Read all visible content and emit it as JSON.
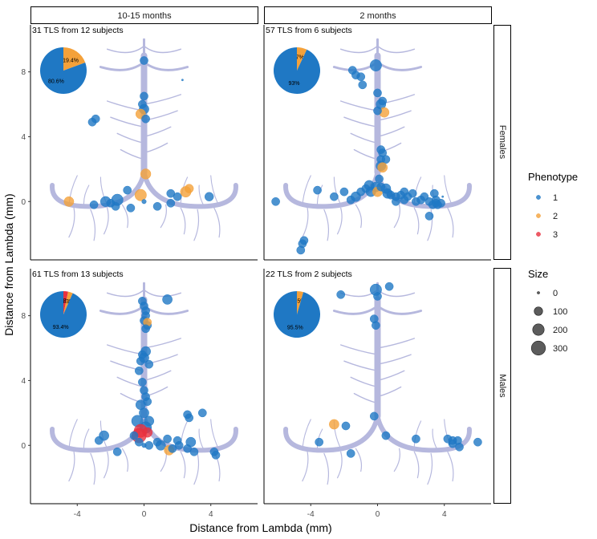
{
  "chart_data": {
    "type": "scatter",
    "xlabel": "Distance from Lambda (mm)",
    "ylabel": "Distance from Lambda (mm)",
    "xlim": [
      -6.8,
      6.8
    ],
    "ylim": [
      -3.6,
      10.9
    ],
    "x_ticks": [
      "-4",
      "0",
      "4"
    ],
    "y_ticks": [
      "0",
      "4",
      "8"
    ],
    "columns": [
      "10-15 months",
      "2 months"
    ],
    "rows": [
      "Females",
      "Males"
    ],
    "legend": {
      "phenotype_title": "Phenotype",
      "phenotype_items": [
        {
          "label": "1",
          "color": "#1f78c4"
        },
        {
          "label": "2",
          "color": "#f4a13a"
        },
        {
          "label": "3",
          "color": "#e8313f"
        }
      ],
      "size_title": "Size",
      "size_items": [
        "0",
        "100",
        "200",
        "300"
      ]
    },
    "panels": [
      {
        "col": 0,
        "row": 0,
        "label": "31 TLS from 12 subjects",
        "pie": [
          {
            "phenotype": "1",
            "pct": 80.6,
            "label": "80.6%"
          },
          {
            "phenotype": "2",
            "pct": 19.4,
            "label": "19.4%"
          }
        ],
        "points": [
          {
            "x": 0.0,
            "y": 8.7,
            "p": 1,
            "s": 25
          },
          {
            "x": 0.0,
            "y": 6.5,
            "p": 1,
            "s": 25
          },
          {
            "x": -0.1,
            "y": 6.0,
            "p": 1,
            "s": 25
          },
          {
            "x": 0.0,
            "y": 5.7,
            "p": 1,
            "s": 40
          },
          {
            "x": -0.2,
            "y": 5.4,
            "p": 2,
            "s": 40
          },
          {
            "x": 0.1,
            "y": 5.1,
            "p": 1,
            "s": 25
          },
          {
            "x": -2.9,
            "y": 5.1,
            "p": 1,
            "s": 25
          },
          {
            "x": -3.1,
            "y": 4.9,
            "p": 1,
            "s": 25
          },
          {
            "x": 0.1,
            "y": 1.7,
            "p": 2,
            "s": 45
          },
          {
            "x": -0.2,
            "y": 0.4,
            "p": 2,
            "s": 60
          },
          {
            "x": -4.5,
            "y": 0.0,
            "p": 2,
            "s": 40
          },
          {
            "x": -3.0,
            "y": -0.2,
            "p": 1,
            "s": 25
          },
          {
            "x": -2.3,
            "y": 0.0,
            "p": 1,
            "s": 45
          },
          {
            "x": -2.0,
            "y": -0.1,
            "p": 1,
            "s": 25
          },
          {
            "x": -1.6,
            "y": 0.1,
            "p": 1,
            "s": 60
          },
          {
            "x": -1.7,
            "y": -0.3,
            "p": 1,
            "s": 25
          },
          {
            "x": -1.0,
            "y": 0.7,
            "p": 1,
            "s": 25
          },
          {
            "x": -0.8,
            "y": -0.4,
            "p": 1,
            "s": 25
          },
          {
            "x": 0.0,
            "y": 0.0,
            "p": 1,
            "s": 4
          },
          {
            "x": 0.8,
            "y": -0.3,
            "p": 1,
            "s": 25
          },
          {
            "x": 1.6,
            "y": 0.5,
            "p": 1,
            "s": 25
          },
          {
            "x": 1.6,
            "y": -0.1,
            "p": 1,
            "s": 25
          },
          {
            "x": 2.0,
            "y": 0.3,
            "p": 1,
            "s": 25
          },
          {
            "x": 2.5,
            "y": 0.6,
            "p": 2,
            "s": 50
          },
          {
            "x": 2.7,
            "y": 0.8,
            "p": 2,
            "s": 30
          },
          {
            "x": 3.9,
            "y": 0.3,
            "p": 1,
            "s": 30
          },
          {
            "x": 2.3,
            "y": 7.5,
            "p": 1,
            "s": 0
          }
        ]
      },
      {
        "col": 1,
        "row": 0,
        "label": "57 TLS from 6 subjects",
        "pie": [
          {
            "phenotype": "1",
            "pct": 93,
            "label": "93%"
          },
          {
            "phenotype": "2",
            "pct": 7,
            "label": "7%"
          }
        ],
        "points": [
          {
            "x": -0.1,
            "y": 8.4,
            "p": 1,
            "s": 60
          },
          {
            "x": -1.5,
            "y": 8.1,
            "p": 1,
            "s": 25
          },
          {
            "x": -1.3,
            "y": 7.8,
            "p": 1,
            "s": 25
          },
          {
            "x": -1.0,
            "y": 7.7,
            "p": 1,
            "s": 25
          },
          {
            "x": -0.9,
            "y": 7.2,
            "p": 1,
            "s": 25
          },
          {
            "x": 0.0,
            "y": 6.7,
            "p": 1,
            "s": 25
          },
          {
            "x": 0.3,
            "y": 6.2,
            "p": 1,
            "s": 25
          },
          {
            "x": 0.2,
            "y": 6.0,
            "p": 1,
            "s": 40
          },
          {
            "x": 0.4,
            "y": 5.5,
            "p": 2,
            "s": 40
          },
          {
            "x": 0.0,
            "y": 5.6,
            "p": 1,
            "s": 25
          },
          {
            "x": 0.2,
            "y": 3.2,
            "p": 1,
            "s": 25
          },
          {
            "x": 0.3,
            "y": 3.0,
            "p": 1,
            "s": 25
          },
          {
            "x": 0.2,
            "y": 2.6,
            "p": 1,
            "s": 25
          },
          {
            "x": 0.2,
            "y": 2.2,
            "p": 1,
            "s": 40
          },
          {
            "x": 0.5,
            "y": 2.6,
            "p": 1,
            "s": 25
          },
          {
            "x": 0.3,
            "y": 2.1,
            "p": 2,
            "s": 40
          },
          {
            "x": 0.1,
            "y": 1.4,
            "p": 1,
            "s": 25
          },
          {
            "x": -6.1,
            "y": 0.0,
            "p": 1,
            "s": 25
          },
          {
            "x": -3.6,
            "y": 0.7,
            "p": 1,
            "s": 25
          },
          {
            "x": -2.6,
            "y": 0.3,
            "p": 1,
            "s": 25
          },
          {
            "x": -2.0,
            "y": 0.6,
            "p": 1,
            "s": 25
          },
          {
            "x": -1.6,
            "y": 0.1,
            "p": 1,
            "s": 25
          },
          {
            "x": -1.3,
            "y": 0.3,
            "p": 1,
            "s": 40
          },
          {
            "x": -1.0,
            "y": 0.6,
            "p": 1,
            "s": 25
          },
          {
            "x": -0.7,
            "y": 0.8,
            "p": 1,
            "s": 25
          },
          {
            "x": -0.5,
            "y": 1.0,
            "p": 1,
            "s": 40
          },
          {
            "x": -0.4,
            "y": 0.6,
            "p": 1,
            "s": 40
          },
          {
            "x": -0.1,
            "y": 0.9,
            "p": 1,
            "s": 40
          },
          {
            "x": 0.0,
            "y": 0.6,
            "p": 2,
            "s": 40
          },
          {
            "x": 0.2,
            "y": 0.9,
            "p": 1,
            "s": 25
          },
          {
            "x": 0.5,
            "y": 0.8,
            "p": 1,
            "s": 40
          },
          {
            "x": 0.6,
            "y": 0.5,
            "p": 1,
            "s": 40
          },
          {
            "x": 0.8,
            "y": 0.4,
            "p": 1,
            "s": 25
          },
          {
            "x": 1.1,
            "y": 0.3,
            "p": 1,
            "s": 25
          },
          {
            "x": 1.1,
            "y": 0.0,
            "p": 1,
            "s": 25
          },
          {
            "x": 1.4,
            "y": 0.4,
            "p": 1,
            "s": 25
          },
          {
            "x": 1.6,
            "y": 0.6,
            "p": 1,
            "s": 25
          },
          {
            "x": 1.6,
            "y": 0.1,
            "p": 1,
            "s": 25
          },
          {
            "x": 1.8,
            "y": 0.3,
            "p": 1,
            "s": 25
          },
          {
            "x": 2.1,
            "y": 0.5,
            "p": 1,
            "s": 25
          },
          {
            "x": 2.3,
            "y": 0.0,
            "p": 1,
            "s": 25
          },
          {
            "x": 2.6,
            "y": 0.1,
            "p": 1,
            "s": 25
          },
          {
            "x": 2.8,
            "y": 0.3,
            "p": 1,
            "s": 25
          },
          {
            "x": 3.1,
            "y": 0.0,
            "p": 1,
            "s": 25
          },
          {
            "x": 3.3,
            "y": -0.2,
            "p": 1,
            "s": 25
          },
          {
            "x": 3.5,
            "y": -0.1,
            "p": 1,
            "s": 25
          },
          {
            "x": 3.8,
            "y": -0.1,
            "p": 1,
            "s": 25
          },
          {
            "x": 3.4,
            "y": 0.5,
            "p": 1,
            "s": 25
          },
          {
            "x": 3.5,
            "y": 0.1,
            "p": 1,
            "s": 25
          },
          {
            "x": 3.1,
            "y": -0.9,
            "p": 1,
            "s": 25
          },
          {
            "x": -4.4,
            "y": -2.4,
            "p": 1,
            "s": 25
          },
          {
            "x": -4.5,
            "y": -2.6,
            "p": 1,
            "s": 25
          },
          {
            "x": -4.6,
            "y": -3.0,
            "p": 1,
            "s": 25
          },
          {
            "x": 3.6,
            "y": -0.2,
            "p": 1,
            "s": 25
          },
          {
            "x": 3.9,
            "y": 0.3,
            "p": 1,
            "s": 0
          }
        ]
      },
      {
        "col": 0,
        "row": 1,
        "label": "61 TLS from 13 subjects",
        "pie": [
          {
            "phenotype": "1",
            "pct": 93.4,
            "label": "93.4%"
          },
          {
            "phenotype": "2",
            "pct": 3.3,
            "label": "3.3%"
          },
          {
            "phenotype": "3",
            "pct": 3.3,
            "label": "3.3%"
          }
        ],
        "points": [
          {
            "x": -0.1,
            "y": 8.9,
            "p": 1,
            "s": 25
          },
          {
            "x": 1.4,
            "y": 9.0,
            "p": 1,
            "s": 40
          },
          {
            "x": 0.0,
            "y": 8.6,
            "p": 1,
            "s": 25
          },
          {
            "x": 0.1,
            "y": 8.3,
            "p": 1,
            "s": 25
          },
          {
            "x": 0.1,
            "y": 8.0,
            "p": 1,
            "s": 25
          },
          {
            "x": 0.0,
            "y": 7.7,
            "p": 1,
            "s": 25
          },
          {
            "x": 0.2,
            "y": 7.4,
            "p": 1,
            "s": 25
          },
          {
            "x": 0.2,
            "y": 7.6,
            "p": 2,
            "s": 25
          },
          {
            "x": 0.1,
            "y": 7.2,
            "p": 1,
            "s": 25
          },
          {
            "x": 0.1,
            "y": 5.8,
            "p": 1,
            "s": 40
          },
          {
            "x": -0.1,
            "y": 5.6,
            "p": 1,
            "s": 25
          },
          {
            "x": 0.0,
            "y": 5.4,
            "p": 1,
            "s": 40
          },
          {
            "x": -0.2,
            "y": 5.2,
            "p": 1,
            "s": 25
          },
          {
            "x": 0.3,
            "y": 5.0,
            "p": 1,
            "s": 25
          },
          {
            "x": -0.3,
            "y": 4.6,
            "p": 1,
            "s": 25
          },
          {
            "x": -0.1,
            "y": 3.9,
            "p": 1,
            "s": 25
          },
          {
            "x": 0.0,
            "y": 3.4,
            "p": 1,
            "s": 25
          },
          {
            "x": 0.1,
            "y": 3.0,
            "p": 1,
            "s": 25
          },
          {
            "x": 0.2,
            "y": 2.7,
            "p": 1,
            "s": 25
          },
          {
            "x": -0.2,
            "y": 2.5,
            "p": 1,
            "s": 40
          },
          {
            "x": 0.0,
            "y": 2.0,
            "p": 1,
            "s": 40
          },
          {
            "x": 0.3,
            "y": 1.5,
            "p": 1,
            "s": 40
          },
          {
            "x": -0.4,
            "y": 1.5,
            "p": 1,
            "s": 60
          },
          {
            "x": 0.1,
            "y": 1.1,
            "p": 1,
            "s": 60
          },
          {
            "x": -0.2,
            "y": 0.9,
            "p": 3,
            "s": 80
          },
          {
            "x": -0.3,
            "y": 0.6,
            "p": 3,
            "s": 100
          },
          {
            "x": 0.2,
            "y": 0.8,
            "p": 3,
            "s": 40
          },
          {
            "x": 2.6,
            "y": 1.9,
            "p": 1,
            "s": 25
          },
          {
            "x": 2.7,
            "y": 1.7,
            "p": 1,
            "s": 25
          },
          {
            "x": 3.5,
            "y": 2.0,
            "p": 1,
            "s": 25
          },
          {
            "x": -2.4,
            "y": 0.6,
            "p": 1,
            "s": 40
          },
          {
            "x": -2.7,
            "y": 0.3,
            "p": 1,
            "s": 25
          },
          {
            "x": -1.6,
            "y": -0.4,
            "p": 1,
            "s": 25
          },
          {
            "x": -0.6,
            "y": 0.6,
            "p": 1,
            "s": 25
          },
          {
            "x": -0.3,
            "y": 0.2,
            "p": 1,
            "s": 25
          },
          {
            "x": 0.3,
            "y": 0.0,
            "p": 1,
            "s": 25
          },
          {
            "x": 0.8,
            "y": 0.2,
            "p": 1,
            "s": 25
          },
          {
            "x": 1.0,
            "y": 0.0,
            "p": 1,
            "s": 40
          },
          {
            "x": 1.4,
            "y": 0.4,
            "p": 1,
            "s": 25
          },
          {
            "x": 1.5,
            "y": -0.3,
            "p": 2,
            "s": 40
          },
          {
            "x": 1.7,
            "y": -0.2,
            "p": 1,
            "s": 25
          },
          {
            "x": 2.0,
            "y": 0.3,
            "p": 1,
            "s": 25
          },
          {
            "x": 2.1,
            "y": 0.0,
            "p": 1,
            "s": 25
          },
          {
            "x": 2.6,
            "y": -0.2,
            "p": 1,
            "s": 25
          },
          {
            "x": 2.8,
            "y": 0.2,
            "p": 1,
            "s": 40
          },
          {
            "x": 3.0,
            "y": -0.4,
            "p": 1,
            "s": 25
          },
          {
            "x": 4.3,
            "y": -0.6,
            "p": 1,
            "s": 25
          },
          {
            "x": 4.2,
            "y": -0.4,
            "p": 1,
            "s": 25
          },
          {
            "x": 0.0,
            "y": 0.0,
            "p": 1,
            "s": 4
          }
        ]
      },
      {
        "col": 1,
        "row": 1,
        "label": "22 TLS from 2 subjects",
        "pie": [
          {
            "phenotype": "1",
            "pct": 95.5,
            "label": "95.5%"
          },
          {
            "phenotype": "2",
            "pct": 4.5,
            "label": "4.5%"
          }
        ],
        "points": [
          {
            "x": -0.1,
            "y": 9.6,
            "p": 1,
            "s": 60
          },
          {
            "x": 0.7,
            "y": 9.8,
            "p": 1,
            "s": 25
          },
          {
            "x": -2.2,
            "y": 9.3,
            "p": 1,
            "s": 25
          },
          {
            "x": 0.0,
            "y": 9.2,
            "p": 1,
            "s": 25
          },
          {
            "x": -0.2,
            "y": 7.8,
            "p": 1,
            "s": 25
          },
          {
            "x": -0.1,
            "y": 7.4,
            "p": 1,
            "s": 25
          },
          {
            "x": -0.2,
            "y": 1.8,
            "p": 1,
            "s": 25
          },
          {
            "x": -2.6,
            "y": 1.3,
            "p": 2,
            "s": 40
          },
          {
            "x": -1.9,
            "y": 1.2,
            "p": 1,
            "s": 25
          },
          {
            "x": -3.5,
            "y": 0.2,
            "p": 1,
            "s": 25
          },
          {
            "x": -1.6,
            "y": -0.5,
            "p": 1,
            "s": 25
          },
          {
            "x": 0.5,
            "y": 0.6,
            "p": 1,
            "s": 25
          },
          {
            "x": 2.3,
            "y": 0.4,
            "p": 1,
            "s": 25
          },
          {
            "x": 4.2,
            "y": 0.4,
            "p": 1,
            "s": 25
          },
          {
            "x": 4.5,
            "y": 0.3,
            "p": 1,
            "s": 25
          },
          {
            "x": 4.8,
            "y": 0.3,
            "p": 1,
            "s": 25
          },
          {
            "x": 4.5,
            "y": 0.1,
            "p": 1,
            "s": 25
          },
          {
            "x": 4.9,
            "y": -0.1,
            "p": 1,
            "s": 25
          },
          {
            "x": 6.0,
            "y": 0.2,
            "p": 1,
            "s": 25
          },
          {
            "x": 4.3,
            "y": 0.1,
            "p": 1,
            "s": 0
          }
        ]
      }
    ]
  }
}
